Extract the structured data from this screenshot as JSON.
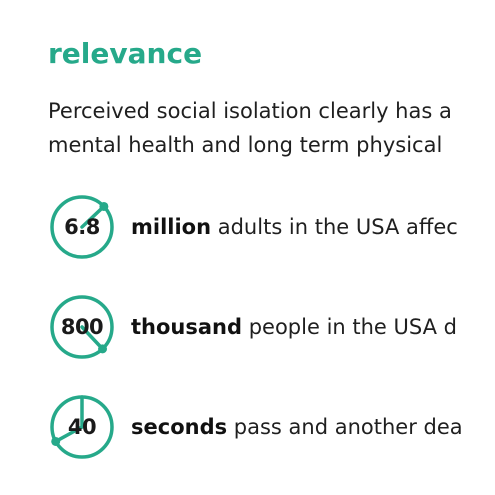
{
  "heading": "relevance",
  "intro": {
    "line1": "Perceived social isolation clearly has a",
    "line2": "mental health and long term physical"
  },
  "stats": [
    {
      "value": "6.8",
      "unit": "million",
      "text": " adults in the USA affec",
      "dial_fraction": 0.13
    },
    {
      "value": "800",
      "unit": "thousand",
      "text": " people in the USA d",
      "dial_fraction": 0.38
    },
    {
      "value": "40",
      "unit": "seconds",
      "text": " pass and another dea",
      "dial_fraction": 0.67
    }
  ],
  "colors": {
    "accent": "#26a98a",
    "text": "#1f1f1f"
  }
}
